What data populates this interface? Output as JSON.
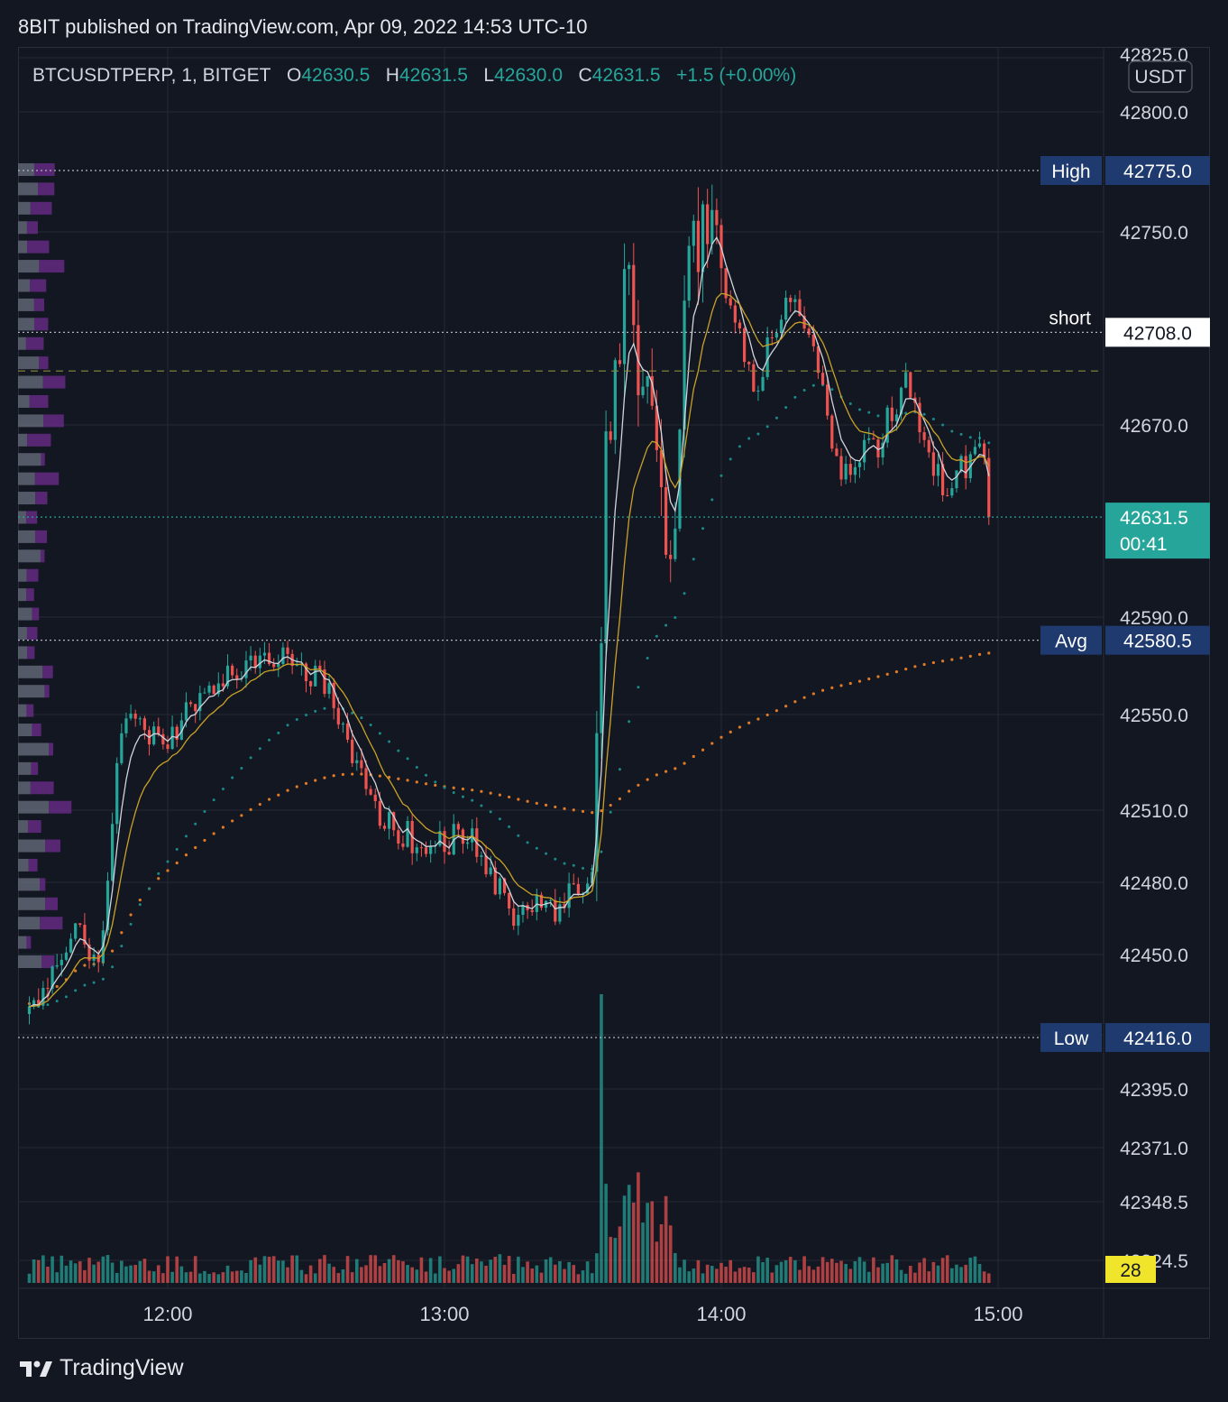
{
  "header": {
    "published": "8BIT published on TradingView.com, Apr 09, 2022 14:53 UTC-10"
  },
  "legend": {
    "symbol": "BTCUSDTPERP, 1, BITGET",
    "o_label": "O",
    "o": "42630.5",
    "h_label": "H",
    "h": "42631.5",
    "l_label": "L",
    "l": "42630.0",
    "c_label": "C",
    "c": "42631.5",
    "change": "+1.5 (+0.00%)"
  },
  "footer": {
    "brand": "TradingView",
    "logo_icon": "tradingview-logo-icon"
  },
  "colors": {
    "up": "#26a69a",
    "down": "#ef5350",
    "background": "#131722",
    "grid": "#242833",
    "vwap": "#e07a26",
    "ema_fast": "#d1d4dc",
    "ema_slow": "#c9a227",
    "ema_long": "#1a8a8a"
  },
  "chart_data": {
    "type": "candlestick",
    "currency": "USDT",
    "price_ticks": [
      "42825.0",
      "42800.0",
      "42750.0",
      "42670.0",
      "42590.0",
      "42550.0",
      "42510.0",
      "42480.0",
      "42450.0",
      "42395.0",
      "42371.0",
      "42348.5",
      "42324.5"
    ],
    "time_ticks": [
      "12:00",
      "13:00",
      "14:00",
      "15:00"
    ],
    "levels": [
      {
        "label": "High",
        "value": "42775.0"
      },
      {
        "label": "short",
        "value": "42708.0"
      },
      {
        "label": "Avg",
        "value": "42580.5"
      },
      {
        "label": "Low",
        "value": "42416.0"
      }
    ],
    "dashed_level": 42692,
    "last_price": {
      "value": "42631.5",
      "countdown": "00:41"
    },
    "volume_label": "28",
    "key_points": [
      {
        "time": "11:30",
        "price": 42425
      },
      {
        "time": "11:40",
        "price": 42465
      },
      {
        "time": "11:45",
        "price": 42445
      },
      {
        "time": "11:50",
        "price": 42545
      },
      {
        "time": "12:00",
        "price": 42540
      },
      {
        "time": "12:10",
        "price": 42565
      },
      {
        "time": "12:25",
        "price": 42575
      },
      {
        "time": "12:35",
        "price": 42560
      },
      {
        "time": "12:45",
        "price": 42510
      },
      {
        "time": "12:55",
        "price": 42495
      },
      {
        "time": "13:05",
        "price": 42500
      },
      {
        "time": "13:10",
        "price": 42480
      },
      {
        "time": "13:15",
        "price": 42468
      },
      {
        "time": "13:25",
        "price": 42470
      },
      {
        "time": "13:30",
        "price": 42480
      },
      {
        "time": "13:32",
        "price": 42490
      },
      {
        "time": "13:33",
        "price": 42530
      },
      {
        "time": "13:34",
        "price": 42580
      },
      {
        "time": "13:35",
        "price": 42660
      },
      {
        "time": "13:38",
        "price": 42700
      },
      {
        "time": "13:40",
        "price": 42740
      },
      {
        "time": "13:42",
        "price": 42695
      },
      {
        "time": "13:44",
        "price": 42680
      },
      {
        "time": "13:47",
        "price": 42630
      },
      {
        "time": "13:50",
        "price": 42625
      },
      {
        "time": "13:52",
        "price": 42730
      },
      {
        "time": "13:55",
        "price": 42745
      },
      {
        "time": "13:58",
        "price": 42750
      },
      {
        "time": "14:00",
        "price": 42735
      },
      {
        "time": "14:05",
        "price": 42700
      },
      {
        "time": "14:08",
        "price": 42680
      },
      {
        "time": "14:10",
        "price": 42700
      },
      {
        "time": "14:15",
        "price": 42725
      },
      {
        "time": "14:20",
        "price": 42700
      },
      {
        "time": "14:25",
        "price": 42650
      },
      {
        "time": "14:30",
        "price": 42655
      },
      {
        "time": "14:35",
        "price": 42665
      },
      {
        "time": "14:40",
        "price": 42690
      },
      {
        "time": "14:45",
        "price": 42660
      },
      {
        "time": "14:48",
        "price": 42645
      },
      {
        "time": "14:52",
        "price": 42650
      },
      {
        "time": "14:55",
        "price": 42660
      },
      {
        "time": "14:57",
        "price": 42650
      },
      {
        "time": "14:58",
        "price": 42631.5
      }
    ]
  }
}
